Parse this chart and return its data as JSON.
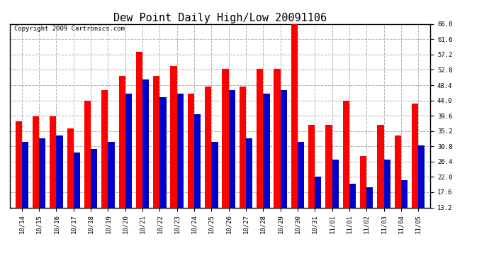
{
  "title": "Dew Point Daily High/Low 20091106",
  "copyright": "Copyright 2009 Cartronics.com",
  "categories": [
    "10/14",
    "10/15",
    "10/16",
    "10/17",
    "10/18",
    "10/19",
    "10/20",
    "10/21",
    "10/22",
    "10/23",
    "10/24",
    "10/25",
    "10/26",
    "10/27",
    "10/28",
    "10/29",
    "10/30",
    "10/31",
    "11/01",
    "11/01",
    "11/02",
    "11/03",
    "11/04",
    "11/05"
  ],
  "high_values": [
    38.0,
    39.5,
    39.5,
    36.0,
    44.0,
    47.0,
    51.0,
    58.0,
    51.0,
    54.0,
    46.0,
    48.0,
    53.0,
    48.0,
    53.0,
    53.0,
    66.0,
    37.0,
    37.0,
    44.0,
    28.0,
    37.0,
    34.0,
    43.0
  ],
  "low_values": [
    32.0,
    33.0,
    34.0,
    29.0,
    30.0,
    32.0,
    46.0,
    50.0,
    45.0,
    46.0,
    40.0,
    32.0,
    47.0,
    33.0,
    46.0,
    47.0,
    32.0,
    22.0,
    27.0,
    20.0,
    19.0,
    27.0,
    21.0,
    31.0
  ],
  "high_color": "#ff0000",
  "low_color": "#0000cc",
  "ylim": [
    13.2,
    66.0
  ],
  "yticks": [
    13.2,
    17.6,
    22.0,
    26.4,
    30.8,
    35.2,
    39.6,
    44.0,
    48.4,
    52.8,
    57.2,
    61.6,
    66.0
  ],
  "bg_color": "#ffffff",
  "plot_bg_color": "#ffffff",
  "grid_color": "#b0b0b0",
  "bar_width": 0.38,
  "title_fontsize": 11,
  "tick_fontsize": 6.5,
  "copyright_fontsize": 6.5
}
